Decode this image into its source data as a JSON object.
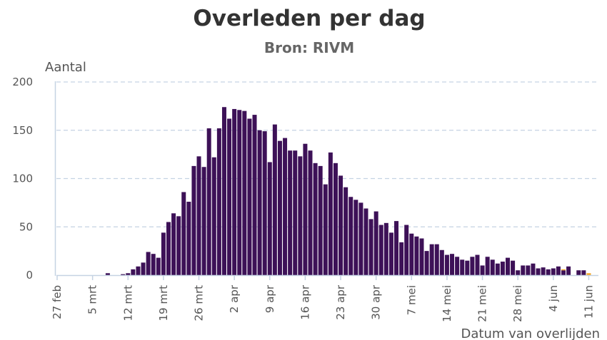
{
  "chart_data": {
    "type": "bar",
    "title": "Overleden per dag",
    "subtitle": "Bron: RIVM",
    "ylabel": "Aantal",
    "xlabel": "Datum van overlijden",
    "ylim": [
      0,
      200
    ],
    "yticks": [
      0,
      50,
      100,
      150,
      200
    ],
    "xtick_labels": [
      "27 feb",
      "5 mrt",
      "12 mrt",
      "19 mrt",
      "26 mrt",
      "2 apr",
      "9 apr",
      "16 apr",
      "23 apr",
      "30 apr",
      "7 mei",
      "14 mei",
      "21 mei",
      "28 mei",
      "4 jun",
      "11 jun"
    ],
    "grid": "horizontal dashed",
    "categories": [
      "27 feb",
      "28 feb",
      "29 feb",
      "1 mrt",
      "2 mrt",
      "3 mrt",
      "4 mrt",
      "5 mrt",
      "6 mrt",
      "7 mrt",
      "8 mrt",
      "9 mrt",
      "10 mrt",
      "11 mrt",
      "12 mrt",
      "13 mrt",
      "14 mrt",
      "15 mrt",
      "16 mrt",
      "17 mrt",
      "18 mrt",
      "19 mrt",
      "20 mrt",
      "21 mrt",
      "22 mrt",
      "23 mrt",
      "24 mrt",
      "25 mrt",
      "26 mrt",
      "27 mrt",
      "28 mrt",
      "29 mrt",
      "30 mrt",
      "31 mrt",
      "1 apr",
      "2 apr",
      "3 apr",
      "4 apr",
      "5 apr",
      "6 apr",
      "7 apr",
      "8 apr",
      "9 apr",
      "10 apr",
      "11 apr",
      "12 apr",
      "13 apr",
      "14 apr",
      "15 apr",
      "16 apr",
      "17 apr",
      "18 apr",
      "19 apr",
      "20 apr",
      "21 apr",
      "22 apr",
      "23 apr",
      "24 apr",
      "25 apr",
      "26 apr",
      "27 apr",
      "28 apr",
      "29 apr",
      "30 apr",
      "1 mei",
      "2 mei",
      "3 mei",
      "4 mei",
      "5 mei",
      "6 mei",
      "7 mei",
      "8 mei",
      "9 mei",
      "10 mei",
      "11 mei",
      "12 mei",
      "13 mei",
      "14 mei",
      "15 mei",
      "16 mei",
      "17 mei",
      "18 mei",
      "19 mei",
      "20 mei",
      "21 mei",
      "22 mei",
      "23 mei",
      "24 mei",
      "25 mei",
      "26 mei",
      "27 mei",
      "28 mei",
      "29 mei",
      "30 mei",
      "31 mei",
      "1 jun",
      "2 jun",
      "3 jun",
      "4 jun",
      "5 jun",
      "6 jun",
      "7 jun",
      "8 jun",
      "9 jun",
      "10 jun",
      "11 jun"
    ],
    "series": [
      {
        "color": "#3d1157",
        "values": [
          0,
          0,
          0,
          0,
          0,
          0,
          0,
          0,
          0,
          0,
          2,
          0,
          0,
          1,
          2,
          6,
          9,
          13,
          24,
          22,
          18,
          44,
          55,
          64,
          61,
          86,
          76,
          113,
          123,
          112,
          152,
          122,
          152,
          174,
          162,
          172,
          171,
          170,
          162,
          166,
          150,
          149,
          117,
          156,
          139,
          142,
          129,
          129,
          123,
          136,
          129,
          116,
          113,
          94,
          127,
          116,
          103,
          91,
          81,
          78,
          75,
          69,
          58,
          66,
          52,
          54,
          44,
          56,
          34,
          52,
          43,
          40,
          38,
          25,
          32,
          32,
          26,
          21,
          22,
          19,
          16,
          15,
          19,
          21,
          10,
          19,
          16,
          12,
          14,
          18,
          15,
          5,
          10,
          10,
          12,
          7,
          8,
          6,
          7,
          9,
          5,
          9,
          0,
          5,
          5,
          0
        ]
      },
      {
        "color": "#f5a623",
        "values": [
          0,
          0,
          0,
          0,
          0,
          0,
          0,
          0,
          0,
          0,
          0,
          0,
          0,
          0,
          0,
          0,
          0,
          0,
          0,
          0,
          0,
          0,
          0,
          0,
          0,
          0,
          0,
          0,
          0,
          0,
          0,
          0,
          0,
          0,
          0,
          0,
          0,
          0,
          0,
          0,
          0,
          0,
          0,
          0,
          0,
          0,
          0,
          0,
          0,
          0,
          0,
          0,
          0,
          0,
          0,
          0,
          0,
          0,
          0,
          0,
          0,
          0,
          0,
          0,
          0,
          0,
          0,
          0,
          0,
          0,
          0,
          0,
          0,
          0,
          0,
          0,
          0,
          0,
          0,
          0,
          0,
          0,
          0,
          0,
          0,
          0,
          0,
          0,
          0,
          0,
          0,
          0,
          0,
          0,
          0,
          0,
          0,
          0,
          0,
          0,
          1,
          0,
          0,
          0,
          0,
          2
        ]
      }
    ]
  }
}
